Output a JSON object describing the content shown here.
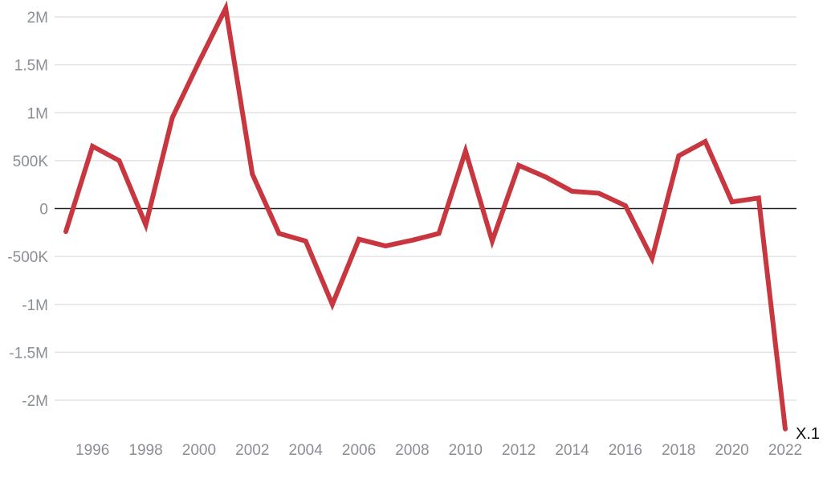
{
  "chart_data": {
    "type": "line",
    "title": "",
    "xlabel": "",
    "ylabel": "",
    "grid": true,
    "legend": "none",
    "xlim": [
      1995,
      2022
    ],
    "ylim": [
      -2200000,
      2100000
    ],
    "x_ticks": [
      1996,
      1998,
      2000,
      2002,
      2004,
      2006,
      2008,
      2010,
      2012,
      2014,
      2016,
      2018,
      2020,
      2022
    ],
    "y_ticks": [
      {
        "value": 2000000,
        "label": "2M"
      },
      {
        "value": 1500000,
        "label": "1.5M"
      },
      {
        "value": 1000000,
        "label": "1M"
      },
      {
        "value": 500000,
        "label": "500K"
      },
      {
        "value": 0,
        "label": "0"
      },
      {
        "value": -500000,
        "label": "-500K"
      },
      {
        "value": -1000000,
        "label": "-1M"
      },
      {
        "value": -1500000,
        "label": "-1.5M"
      },
      {
        "value": -2000000,
        "label": "-2M"
      }
    ],
    "series": [
      {
        "name": "X.1",
        "color": "#c8373f",
        "x": [
          1995,
          1996,
          1997,
          1998,
          1999,
          2000,
          2001,
          2002,
          2003,
          2004,
          2005,
          2006,
          2007,
          2008,
          2009,
          2010,
          2011,
          2012,
          2013,
          2014,
          2015,
          2016,
          2017,
          2018,
          2019,
          2020,
          2021,
          2022
        ],
        "values": [
          -240000,
          650000,
          500000,
          -170000,
          950000,
          1530000,
          2090000,
          360000,
          -260000,
          -340000,
          -1000000,
          -320000,
          -390000,
          -330000,
          -260000,
          600000,
          -340000,
          450000,
          330000,
          180000,
          160000,
          30000,
          -520000,
          550000,
          700000,
          70000,
          110000,
          -2300000
        ]
      }
    ]
  },
  "colors": {
    "line": "#c8373f",
    "grid": "#e3e3e3",
    "zero_line": "#222222",
    "tick_text": "#8a8f96"
  }
}
